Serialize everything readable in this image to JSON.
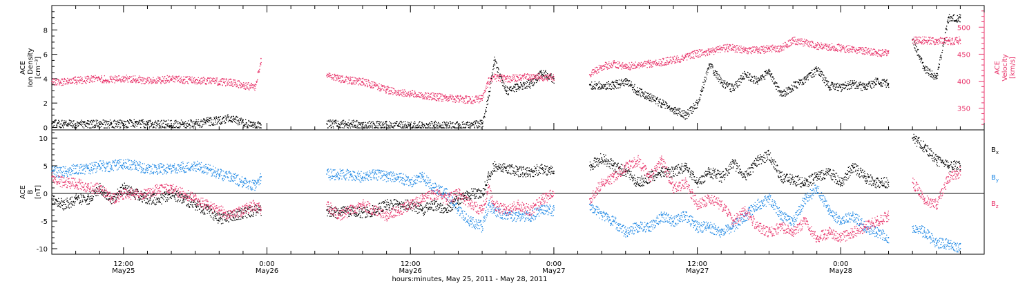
{
  "chart_data": [
    {
      "type": "scatter",
      "panel": "density-velocity",
      "ylabel_left": [
        "ACE",
        "Ion Density",
        "[cm⁻³]"
      ],
      "ylabel_right": [
        "ACE",
        "Velocity",
        "[km/s]"
      ],
      "x_unit": "hours since 2011-05-25 00:00",
      "xlim_hours": [
        6,
        84
      ],
      "ylim_left": [
        -0.2,
        10
      ],
      "ylim_right": [
        310,
        540
      ],
      "yticks_left": [
        "0",
        "2",
        "4",
        "6",
        "8"
      ],
      "yticks_right": [
        "350",
        "400",
        "450",
        "500"
      ],
      "series": [
        {
          "color": "#000000",
          "axis": "left",
          "x": [
            6,
            7,
            8,
            9,
            10,
            11,
            12,
            13,
            14,
            15,
            16,
            17,
            18,
            19,
            20,
            21,
            22,
            23,
            23.5,
            29,
            30,
            31,
            32,
            33,
            34,
            35,
            36,
            37,
            38,
            39,
            40,
            41,
            42,
            42.5,
            43,
            44,
            45,
            46,
            47,
            48,
            51,
            52,
            53,
            54,
            55,
            56,
            57,
            58,
            59,
            60,
            61,
            62,
            63,
            64,
            65,
            66,
            67,
            68,
            69,
            70,
            71,
            72,
            73,
            74,
            75,
            76,
            78,
            79,
            80,
            81,
            82
          ],
          "y": [
            0.3,
            0.3,
            0.3,
            0.3,
            0.3,
            0.3,
            0.3,
            0.4,
            0.3,
            0.3,
            0.3,
            0.3,
            0.3,
            0.5,
            0.6,
            0.8,
            0.4,
            0.2,
            0.2,
            0.3,
            0.3,
            0.3,
            0.2,
            0.2,
            0.2,
            0.2,
            0.2,
            0.2,
            0.2,
            0.2,
            0.2,
            0.2,
            0.3,
            2.5,
            5.5,
            3.0,
            3.4,
            3.6,
            4.5,
            4.0,
            3.5,
            3.5,
            3.5,
            3.8,
            3.0,
            2.5,
            2.0,
            1.5,
            1.0,
            2.0,
            5.2,
            3.7,
            3.2,
            4.4,
            3.8,
            4.6,
            2.7,
            3.4,
            3.9,
            4.8,
            3.4,
            3.3,
            3.6,
            3.3,
            3.8,
            3.6,
            7.2,
            4.8,
            4.2,
            9.0,
            9.0
          ]
        },
        {
          "color": "#e8336a",
          "axis": "right",
          "x": [
            6,
            7,
            8,
            9,
            10,
            11,
            12,
            13,
            14,
            15,
            16,
            17,
            18,
            19,
            20,
            21,
            22,
            23,
            23.5,
            29,
            30,
            31,
            32,
            33,
            34,
            35,
            36,
            37,
            38,
            39,
            40,
            41,
            42,
            42.5,
            43,
            44,
            45,
            46,
            47,
            48,
            51,
            52,
            53,
            54,
            55,
            56,
            57,
            58,
            59,
            60,
            61,
            62,
            63,
            64,
            65,
            66,
            67,
            68,
            69,
            70,
            71,
            72,
            73,
            74,
            75,
            76,
            78,
            79,
            80,
            81,
            82
          ],
          "y": [
            400,
            400,
            402,
            404,
            405,
            403,
            406,
            404,
            402,
            403,
            405,
            403,
            402,
            402,
            400,
            398,
            393,
            390,
            442,
            410,
            405,
            402,
            400,
            392,
            385,
            380,
            378,
            375,
            372,
            370,
            368,
            366,
            368,
            400,
            408,
            405,
            407,
            408,
            408,
            408,
            412,
            428,
            432,
            428,
            430,
            433,
            436,
            440,
            445,
            452,
            455,
            462,
            462,
            458,
            458,
            460,
            462,
            476,
            472,
            466,
            464,
            462,
            459,
            457,
            454,
            452,
            476,
            476,
            475,
            475,
            476
          ]
        }
      ]
    },
    {
      "type": "scatter",
      "panel": "magnetic-field",
      "ylabel_left": [
        "ACE",
        "B",
        "[nT]"
      ],
      "x_unit": "hours since 2011-05-25 00:00",
      "xlim_hours": [
        6,
        84
      ],
      "ylim": [
        -11,
        11.5
      ],
      "yticks": [
        "10",
        "5",
        "0",
        "-5",
        "-10"
      ],
      "zero_line": true,
      "legend_placement": "right",
      "series": [
        {
          "name": "B",
          "sub": "x",
          "color": "#000000",
          "x": [
            6,
            7,
            8,
            9,
            10,
            11,
            12,
            13,
            14,
            15,
            16,
            17,
            18,
            19,
            20,
            21,
            22,
            23,
            23.5,
            29,
            30,
            31,
            32,
            33,
            34,
            35,
            36,
            37,
            38,
            39,
            40,
            41,
            42,
            42.5,
            43,
            44,
            45,
            46,
            47,
            48,
            51,
            52,
            53,
            54,
            55,
            56,
            57,
            58,
            59,
            60,
            61,
            62,
            63,
            64,
            65,
            66,
            67,
            68,
            69,
            70,
            71,
            72,
            73,
            74,
            75,
            76,
            78,
            79,
            80,
            81,
            82
          ],
          "y": [
            -1,
            -2,
            -1,
            -1,
            1,
            -1,
            1,
            0,
            -1,
            -1,
            0,
            -1,
            -2,
            -3,
            -4.5,
            -4,
            -3.5,
            -3,
            -3,
            -3,
            -3.5,
            -3,
            -3.5,
            -3,
            -2,
            -2,
            -2,
            -3,
            -2,
            -3,
            -1,
            0,
            0,
            3,
            5,
            4.5,
            4,
            4,
            4.5,
            4,
            5,
            6.5,
            5,
            4,
            2,
            3,
            4,
            4,
            5,
            2,
            4,
            3,
            5.5,
            3,
            6,
            7,
            3,
            2.5,
            2,
            3,
            4,
            2,
            5,
            3,
            2,
            2,
            10,
            8.5,
            6,
            5,
            5
          ]
        },
        {
          "name": "B",
          "sub": "y",
          "color": "#1e88e5",
          "x": [
            6,
            7,
            8,
            9,
            10,
            11,
            12,
            13,
            14,
            15,
            16,
            17,
            18,
            19,
            20,
            21,
            22,
            23,
            23.5,
            29,
            30,
            31,
            32,
            33,
            34,
            35,
            36,
            37,
            38,
            39,
            40,
            41,
            42,
            42.5,
            43,
            44,
            45,
            46,
            47,
            48,
            51,
            52,
            53,
            54,
            55,
            56,
            57,
            58,
            59,
            60,
            61,
            62,
            63,
            64,
            65,
            66,
            67,
            68,
            69,
            70,
            71,
            72,
            73,
            74,
            75,
            76,
            78,
            79,
            80,
            81,
            82
          ],
          "y": [
            4,
            4,
            4.5,
            4.5,
            5,
            5,
            5.5,
            5,
            4.5,
            4.5,
            4.5,
            4.8,
            5,
            4.5,
            3.5,
            3,
            2,
            1.5,
            3,
            3.5,
            3.5,
            3.5,
            3,
            3.5,
            3,
            3,
            2,
            3,
            1,
            0,
            -3,
            -5,
            -6,
            -2,
            -3,
            -4,
            -4,
            -4,
            -3,
            -3,
            -2,
            -4,
            -5,
            -7,
            -6,
            -6,
            -4,
            -5,
            -4,
            -6,
            -6,
            -7,
            -6,
            -4,
            -2,
            -1,
            -4,
            -5,
            -1,
            1,
            -3,
            -5,
            -4,
            -6,
            -7,
            -8,
            -6,
            -7,
            -9,
            -9,
            -10
          ]
        },
        {
          "name": "B",
          "sub": "z",
          "color": "#e8336a",
          "x": [
            6,
            7,
            8,
            9,
            10,
            11,
            12,
            13,
            14,
            15,
            16,
            17,
            18,
            19,
            20,
            21,
            22,
            23,
            23.5,
            29,
            30,
            31,
            32,
            33,
            34,
            35,
            36,
            37,
            38,
            39,
            40,
            41,
            42,
            42.5,
            43,
            44,
            45,
            46,
            47,
            48,
            51,
            52,
            53,
            54,
            55,
            56,
            57,
            58,
            59,
            60,
            61,
            62,
            63,
            64,
            65,
            66,
            67,
            68,
            69,
            70,
            71,
            72,
            73,
            74,
            75,
            76,
            78,
            79,
            80,
            81,
            82
          ],
          "y": [
            3,
            2,
            2,
            1,
            1,
            -1,
            0,
            0,
            0,
            1,
            1,
            0,
            -1,
            -2,
            -3,
            -4,
            -3,
            -2,
            -3,
            -2,
            -4,
            -3,
            -2,
            -3,
            -4,
            -3,
            -2,
            -1,
            0,
            -1,
            0,
            -2,
            -3,
            1,
            -2,
            -3,
            -2,
            -3,
            -1,
            0,
            -1,
            2,
            3,
            5,
            6,
            3,
            6,
            1,
            2,
            -2,
            -1,
            -2,
            -5,
            -3,
            -6,
            -7,
            -6,
            -7,
            -5,
            -8,
            -7,
            -8,
            -7,
            -6,
            -5,
            -4,
            2,
            -1,
            -2,
            3,
            4
          ]
        }
      ]
    },
    {
      "panel": "time-axis",
      "xticks": [
        {
          "hour": 12,
          "label": "12:00",
          "sublabel": "May25"
        },
        {
          "hour": 24,
          "label": "0:00",
          "sublabel": "May26"
        },
        {
          "hour": 36,
          "label": "12:00",
          "sublabel": "May26"
        },
        {
          "hour": 48,
          "label": "0:00",
          "sublabel": "May27"
        },
        {
          "hour": 60,
          "label": "12:00",
          "sublabel": "May27"
        },
        {
          "hour": 72,
          "label": "0:00",
          "sublabel": "May28"
        }
      ],
      "xlabel": "hours:minutes, May 25, 2011 - May 28, 2011"
    }
  ]
}
